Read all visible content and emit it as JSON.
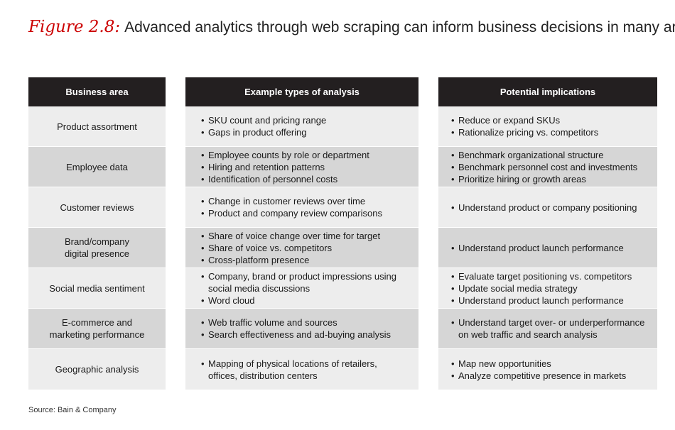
{
  "title": {
    "figure_label": "Figure 2.8:",
    "text": "Advanced analytics through web scraping can inform business decisions in many areas"
  },
  "headers": [
    "Business area",
    "Example types of analysis",
    "Potential implications"
  ],
  "rows": [
    {
      "area": [
        "Product assortment"
      ],
      "analysis": [
        [
          "SKU count and pricing range"
        ],
        [
          "Gaps in product offering"
        ]
      ],
      "implications": [
        [
          "Reduce or expand SKUs"
        ],
        [
          "Rationalize pricing vs. competitors"
        ]
      ]
    },
    {
      "area": [
        "Employee data"
      ],
      "analysis": [
        [
          "Employee counts by role or department"
        ],
        [
          "Hiring and retention patterns"
        ],
        [
          "Identification of personnel costs"
        ]
      ],
      "implications": [
        [
          "Benchmark organizational structure"
        ],
        [
          "Benchmark personnel cost and investments"
        ],
        [
          "Prioritize hiring or growth areas"
        ]
      ]
    },
    {
      "area": [
        "Customer reviews"
      ],
      "analysis": [
        [
          "Change in customer reviews over time"
        ],
        [
          "Product and company review comparisons"
        ]
      ],
      "implications": [
        [
          "Understand product or company positioning"
        ]
      ]
    },
    {
      "area": [
        "Brand/company",
        "digital presence"
      ],
      "analysis": [
        [
          "Share of voice change over time for target"
        ],
        [
          "Share of voice vs. competitors"
        ],
        [
          "Cross-platform presence"
        ]
      ],
      "implications": [
        [
          "Understand product launch performance"
        ]
      ]
    },
    {
      "area": [
        "Social media sentiment"
      ],
      "analysis": [
        [
          "Company, brand or product impressions using",
          "social media discussions"
        ],
        [
          "Word cloud"
        ]
      ],
      "implications": [
        [
          "Evaluate target positioning vs. competitors"
        ],
        [
          "Update social media strategy"
        ],
        [
          "Understand product launch performance"
        ]
      ]
    },
    {
      "area": [
        "E-commerce and",
        "marketing performance"
      ],
      "analysis": [
        [
          "Web traffic volume and sources"
        ],
        [
          "Search effectiveness and ad-buying analysis"
        ]
      ],
      "implications": [
        [
          "Understand target over- or underperformance",
          "on web traffic and search analysis"
        ]
      ]
    },
    {
      "area": [
        "Geographic analysis"
      ],
      "analysis": [
        [
          "Mapping of physical locations of retailers,",
          "offices, distribution centers"
        ]
      ],
      "implications": [
        [
          "Map new opportunities"
        ],
        [
          "Analyze competitive presence in markets"
        ]
      ]
    }
  ],
  "bullet_glyph": "•",
  "source": "Source: Bain & Company",
  "colors": {
    "figure_label": "#cc0000",
    "header_bg": "#231f20",
    "row_light": "#ededed",
    "row_dark": "#d6d6d6"
  }
}
